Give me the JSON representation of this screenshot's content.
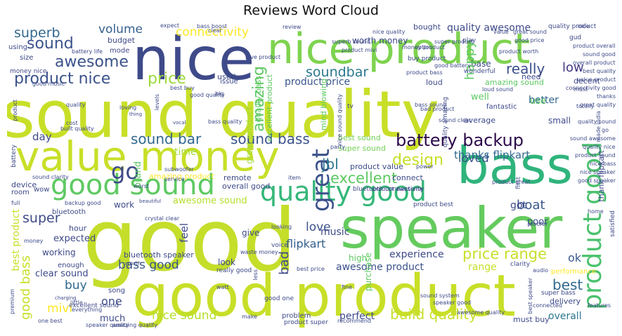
{
  "title": "Reviews Word Cloud",
  "words": [
    {
      "text": "sound quality",
      "color": "#c8df28"
    },
    {
      "text": "good",
      "color": "#c4de2a"
    },
    {
      "text": "good product",
      "color": "#c8df28"
    },
    {
      "text": "nice",
      "color": "#3e4a89"
    },
    {
      "text": "speaker",
      "color": "#64cb5e"
    },
    {
      "text": "bass",
      "color": "#2fb47c"
    },
    {
      "text": "nice product",
      "color": "#7ed34f"
    },
    {
      "text": "value money",
      "color": "#c8df28"
    },
    {
      "text": "good sound",
      "color": "#5ec962"
    },
    {
      "text": "quality good",
      "color": "#35b779"
    },
    {
      "text": "product good",
      "color": "#4ac16d"
    },
    {
      "text": "battery backup",
      "color": "#2c0a4a"
    },
    {
      "text": "great",
      "color": "#3b518b"
    },
    {
      "text": "go",
      "color": "#3e4a89"
    },
    {
      "text": "sound bar",
      "color": "#31688e"
    },
    {
      "text": "sound bass",
      "color": "#3a538b"
    },
    {
      "text": "awesome",
      "color": "#3b528b"
    },
    {
      "text": "sound",
      "color": "#3b528b"
    },
    {
      "text": "product nice",
      "color": "#3b528b"
    },
    {
      "text": "superb",
      "color": "#31688e"
    },
    {
      "text": "volume",
      "color": "#35608d"
    },
    {
      "text": "connectivity",
      "color": "#fde725"
    },
    {
      "text": "price",
      "color": "#9cd93b"
    },
    {
      "text": "soundbar",
      "color": "#2a788e"
    },
    {
      "text": "product price",
      "color": "#39558c"
    },
    {
      "text": "really",
      "color": "#3c4f8a"
    },
    {
      "text": "low",
      "color": "#443983"
    },
    {
      "text": "amazing",
      "color": "#5ec962"
    },
    {
      "text": "jbl",
      "color": "#2a788e"
    },
    {
      "text": "excellent",
      "color": "#5ec962"
    },
    {
      "text": "design",
      "color": "#c8df28"
    },
    {
      "text": "loved",
      "color": "#3b528b"
    },
    {
      "text": "thanks flipkart",
      "color": "#31688e"
    },
    {
      "text": "boat",
      "color": "#39568c"
    },
    {
      "text": "super",
      "color": "#3e4a89"
    },
    {
      "text": "love",
      "color": "#3b528b"
    },
    {
      "text": "bad",
      "color": "#3e4a89"
    },
    {
      "text": "flipkart",
      "color": "#35608d"
    },
    {
      "text": "music",
      "color": "#3e4a89"
    },
    {
      "text": "price range",
      "color": "#c8df28"
    },
    {
      "text": "bass good",
      "color": "#39558c"
    },
    {
      "text": "experience",
      "color": "#3e4a89"
    },
    {
      "text": "ok",
      "color": "#38598c"
    },
    {
      "text": "best",
      "color": "#31688e"
    },
    {
      "text": "one",
      "color": "#3e4a89"
    },
    {
      "text": "buy",
      "color": "#31688e"
    },
    {
      "text": "mivi",
      "color": "#fde725"
    },
    {
      "text": "nice sound",
      "color": "#b5de2b"
    },
    {
      "text": "build quality",
      "color": "#c8df28"
    },
    {
      "text": "perfect",
      "color": "#3e4a89"
    },
    {
      "text": "overall",
      "color": "#2a788e"
    },
    {
      "text": "awesome product",
      "color": "#3b528b"
    },
    {
      "text": "range",
      "color": "#c8df28"
    },
    {
      "text": "great product",
      "color": "#a0da39"
    },
    {
      "text": "excellent product",
      "color": "#5ec962"
    },
    {
      "text": "best sound",
      "color": "#73d056"
    },
    {
      "text": "super sound",
      "color": "#73d056"
    },
    {
      "text": "time",
      "color": "#a0da39"
    },
    {
      "text": "brand",
      "color": "#5ec962"
    },
    {
      "text": "day",
      "color": "#3e4a89"
    },
    {
      "text": "amazing product",
      "color": "#fde725"
    },
    {
      "text": "awesome sound",
      "color": "#b5de2b"
    },
    {
      "text": "bluetooth speaker",
      "color": "#3e4a89"
    },
    {
      "text": "clear sound",
      "color": "#3e4a89"
    },
    {
      "text": "working",
      "color": "#3e4a89"
    },
    {
      "text": "expected",
      "color": "#3e4a89"
    },
    {
      "text": "good bass",
      "color": "#c8df28"
    },
    {
      "text": "best product",
      "color": "#c8df28"
    },
    {
      "text": "much",
      "color": "#3e4a89"
    },
    {
      "text": "worth money",
      "color": "#3e4a89"
    },
    {
      "text": "bought",
      "color": "#3e4a89"
    },
    {
      "text": "quality awesome",
      "color": "#3e4a89"
    },
    {
      "text": "base",
      "color": "#3e4a89"
    },
    {
      "text": "happy",
      "color": "#5ec962"
    },
    {
      "text": "better",
      "color": "#31688e"
    },
    {
      "text": "well",
      "color": "#5ec962"
    },
    {
      "text": "use",
      "color": "#5ec962"
    },
    {
      "text": "amazing sound",
      "color": "#5ec962"
    },
    {
      "text": "small",
      "color": "#3e4a89"
    },
    {
      "text": "loud",
      "color": "#3e4a89"
    },
    {
      "text": "average",
      "color": "#3e4a89"
    },
    {
      "text": "poor",
      "color": "#3e4a89"
    },
    {
      "text": "got",
      "color": "#3e4a89"
    },
    {
      "text": "delivery",
      "color": "#3e4a89"
    },
    {
      "text": "must buy",
      "color": "#3e4a89"
    },
    {
      "text": "work",
      "color": "#3e4a89"
    },
    {
      "text": "look",
      "color": "#3e4a89"
    },
    {
      "text": "feel",
      "color": "#3e4a89"
    },
    {
      "text": "hour",
      "color": "#3e4a89"
    },
    {
      "text": "quality bass",
      "color": "#5ec962"
    },
    {
      "text": "mind blowing",
      "color": "#5ec962"
    },
    {
      "text": "bluetooth",
      "color": "#3e4a89"
    },
    {
      "text": "remote",
      "color": "#3e4a89"
    },
    {
      "text": "overall good",
      "color": "#3e4a89"
    },
    {
      "text": "product value",
      "color": "#3e4a89"
    },
    {
      "text": "connect",
      "color": "#3e4a89"
    },
    {
      "text": "high",
      "color": "#5ec962"
    },
    {
      "text": "purchase",
      "color": "#5ec962"
    },
    {
      "text": "give",
      "color": "#3e4a89"
    },
    {
      "text": "problem",
      "color": "#3e4a89"
    },
    {
      "text": "used",
      "color": "#3e4a89"
    },
    {
      "text": "budget",
      "color": "#3e4a89"
    },
    {
      "text": "mode",
      "color": "#3e4a89"
    },
    {
      "text": "using",
      "color": "#3e4a89"
    },
    {
      "text": "size",
      "color": "#3e4a89"
    },
    {
      "text": "issue",
      "color": "#3e4a89"
    },
    {
      "text": "need",
      "color": "#3e4a89"
    },
    {
      "text": "decent",
      "color": "#3e4a89"
    },
    {
      "text": "fantastic",
      "color": "#3e4a89"
    },
    {
      "text": "subwoofer",
      "color": "#3e4a89"
    },
    {
      "text": "service",
      "color": "#3e4a89"
    },
    {
      "text": "enough",
      "color": "#3e4a89"
    },
    {
      "text": "song",
      "color": "#3e4a89"
    },
    {
      "text": "device",
      "color": "#3e4a89"
    },
    {
      "text": "room",
      "color": "#3e4a89"
    },
    {
      "text": "wow",
      "color": "#3e4a89"
    },
    {
      "text": "full",
      "color": "#3e4a89"
    },
    {
      "text": "battery",
      "color": "#3e4a89"
    },
    {
      "text": "satisfied",
      "color": "#3e4a89"
    },
    {
      "text": "thank flipkart",
      "color": "#3e4a89"
    },
    {
      "text": "performance",
      "color": "#fde725"
    },
    {
      "text": "super bass",
      "color": "#3e4a89"
    },
    {
      "text": "connected",
      "color": "#3e4a89"
    },
    {
      "text": "one best",
      "color": "#3e4a89"
    },
    {
      "text": "excellent sound",
      "color": "#3e4a89"
    },
    {
      "text": "recommend",
      "color": "#3e4a89"
    },
    {
      "text": "product super",
      "color": "#3e4a89"
    },
    {
      "text": "good one",
      "color": "#3e4a89"
    },
    {
      "text": "best price",
      "color": "#3e4a89"
    },
    {
      "text": "product best",
      "color": "#3e4a89"
    },
    {
      "text": "bluetooth connectivity",
      "color": "#3e4a89"
    },
    {
      "text": "worst",
      "color": "#3e4a89"
    },
    {
      "text": "beautiful",
      "color": "#3e4a89"
    },
    {
      "text": "backup good",
      "color": "#3e4a89"
    },
    {
      "text": "sound clarity",
      "color": "#3e4a89"
    },
    {
      "text": "built quality",
      "color": "#3e4a89"
    },
    {
      "text": "money nice",
      "color": "#3e4a89"
    },
    {
      "text": "quality product",
      "color": "#3e4a89"
    },
    {
      "text": "gud",
      "color": "#3e4a89"
    },
    {
      "text": "play",
      "color": "#3e4a89"
    },
    {
      "text": "review",
      "color": "#3e4a89"
    },
    {
      "text": "expect",
      "color": "#3e4a89"
    },
    {
      "text": "vocal",
      "color": "#3e4a89"
    },
    {
      "text": "thing",
      "color": "#3e4a89"
    },
    {
      "text": "tv",
      "color": "#3e4a89"
    },
    {
      "text": "product bass",
      "color": "#3e4a89"
    },
    {
      "text": "bad product",
      "color": "#3e4a89"
    },
    {
      "text": "sound clear",
      "color": "#3e4a89"
    },
    {
      "text": "wonderful",
      "color": "#3e4a89"
    },
    {
      "text": "must",
      "color": "#3e4a89"
    },
    {
      "text": "totally",
      "color": "#3e4a89"
    },
    {
      "text": "made india",
      "color": "#3e4a89"
    },
    {
      "text": "clarity",
      "color": "#3e4a89"
    },
    {
      "text": "audio",
      "color": "#3e4a89"
    },
    {
      "text": "little",
      "color": "#3e4a89"
    },
    {
      "text": "woofer",
      "color": "#3e4a89"
    },
    {
      "text": "home",
      "color": "#3e4a89"
    },
    {
      "text": "features",
      "color": "#3e4a89"
    },
    {
      "text": "really good",
      "color": "#3e4a89"
    },
    {
      "text": "waste money",
      "color": "#3e4a89"
    },
    {
      "text": "voice",
      "color": "#3e4a89"
    },
    {
      "text": "looking",
      "color": "#3e4a89"
    },
    {
      "text": "item",
      "color": "#3e4a89"
    },
    {
      "text": "power",
      "color": "#3e4a89"
    },
    {
      "text": "first",
      "color": "#3e4a89"
    },
    {
      "text": "crystal clear",
      "color": "#3e4a89"
    },
    {
      "text": "make",
      "color": "#3e4a89"
    },
    {
      "text": "fine",
      "color": "#3e4a89"
    },
    {
      "text": "less",
      "color": "#3e4a89"
    },
    {
      "text": "everything",
      "color": "#3e4a89"
    },
    {
      "text": "charging",
      "color": "#3e4a89"
    },
    {
      "text": "premium",
      "color": "#3e4a89"
    },
    {
      "text": "superb sound",
      "color": "#3e4a89"
    },
    {
      "text": "worth",
      "color": "#3e4a89"
    },
    {
      "text": "product mivi",
      "color": "#3e4a89"
    },
    {
      "text": "option",
      "color": "#3e4a89"
    },
    {
      "text": "good battery",
      "color": "#3e4a89"
    },
    {
      "text": "buy product",
      "color": "#3e4a89"
    },
    {
      "text": "love product",
      "color": "#3e4a89"
    },
    {
      "text": "big",
      "color": "#3e4a89"
    },
    {
      "text": "levels",
      "color": "#3e4a89"
    },
    {
      "text": "quality amazing",
      "color": "#3e4a89"
    },
    {
      "text": "best speaker",
      "color": "#3e4a89"
    },
    {
      "text": "battery life",
      "color": "#3e4a89"
    },
    {
      "text": "nice sound quality",
      "color": "#3e4a89"
    },
    {
      "text": "product worth",
      "color": "#3e4a89"
    },
    {
      "text": "good price",
      "color": "#3e4a89"
    },
    {
      "text": "good music",
      "color": "#3e4a89"
    },
    {
      "text": "money product",
      "color": "#3e4a89"
    },
    {
      "text": "good quality",
      "color": "#3e4a89"
    },
    {
      "text": "product",
      "color": "#3e4a89"
    },
    {
      "text": "watt",
      "color": "#3e4a89"
    },
    {
      "text": "bass boost",
      "color": "#3e4a89"
    },
    {
      "text": "loud sound",
      "color": "#3e4a89"
    },
    {
      "text": "value",
      "color": "#3e4a89"
    },
    {
      "text": "great sound",
      "color": "#3e4a89"
    },
    {
      "text": "nice",
      "color": "#3e4a89"
    },
    {
      "text": "cost",
      "color": "#3e4a89"
    },
    {
      "text": "quality",
      "color": "#3e4a89"
    },
    {
      "text": "loving",
      "color": "#3e4a89"
    },
    {
      "text": "bass quality",
      "color": "#3e4a89"
    },
    {
      "text": "bass sound",
      "color": "#3e4a89"
    },
    {
      "text": "party",
      "color": "#3e4a89"
    },
    {
      "text": "product awesome",
      "color": "#3e4a89"
    },
    {
      "text": "best buy",
      "color": "#3e4a89"
    },
    {
      "text": "product overall",
      "color": "#3e4a89"
    },
    {
      "text": "sound good",
      "color": "#3e4a89"
    },
    {
      "text": "money",
      "color": "#3e4a89"
    },
    {
      "text": "sound system",
      "color": "#3e4a89"
    },
    {
      "text": "speaker good",
      "color": "#3e4a89"
    },
    {
      "text": "awesome quality",
      "color": "#3e4a89"
    },
    {
      "text": "product great",
      "color": "#3e4a89"
    },
    {
      "text": "amazing quality",
      "color": "#3e4a89"
    },
    {
      "text": "speaker quality",
      "color": "#3e4a89"
    },
    {
      "text": "clear",
      "color": "#3e4a89"
    },
    {
      "text": "nice quality",
      "color": "#3e4a89"
    },
    {
      "text": "super product",
      "color": "#3e4a89"
    },
    {
      "text": "overall product",
      "color": "#3e4a89"
    },
    {
      "text": "best quality",
      "color": "#3e4a89"
    },
    {
      "text": "value product",
      "color": "#3e4a89"
    },
    {
      "text": "connectivity good",
      "color": "#3e4a89"
    },
    {
      "text": "thanks",
      "color": "#3e4a89"
    },
    {
      "text": "great quality",
      "color": "#3e4a89"
    },
    {
      "text": "quality sound",
      "color": "#3e4a89"
    },
    {
      "text": "go",
      "color": "#3e4a89"
    },
    {
      "text": "sound awesome",
      "color": "#3e4a89"
    },
    {
      "text": "quality nice",
      "color": "#3e4a89"
    },
    {
      "text": "product sound",
      "color": "#3e4a89"
    },
    {
      "text": "nice bass",
      "color": "#3e4a89"
    },
    {
      "text": "nice speaker",
      "color": "#3e4a89"
    },
    {
      "text": "good speaker",
      "color": "#3e4a89"
    }
  ]
}
